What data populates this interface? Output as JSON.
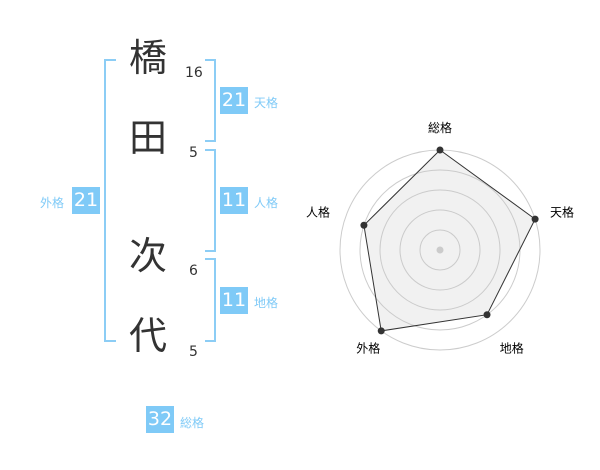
{
  "name": {
    "chars": [
      {
        "char": "橋",
        "strokes": "16"
      },
      {
        "char": "田",
        "strokes": "5"
      },
      {
        "char": "次",
        "strokes": "6"
      },
      {
        "char": "代",
        "strokes": "5"
      }
    ]
  },
  "kaku": {
    "tenkaku": {
      "label": "天格",
      "value": "21"
    },
    "jinkaku": {
      "label": "人格",
      "value": "11"
    },
    "chikaku": {
      "label": "地格",
      "value": "11"
    },
    "gaikaku": {
      "label": "外格",
      "value": "21"
    },
    "soukaku": {
      "label": "総格",
      "value": "32"
    }
  },
  "colors": {
    "accent": "#7fcaf7",
    "bracket": "#8ccdf5"
  },
  "chart_data": {
    "type": "radar",
    "axes": [
      "総格",
      "天格",
      "地格",
      "外格",
      "人格"
    ],
    "values": [
      5,
      5,
      4,
      5,
      4
    ],
    "rmax": 5,
    "rings": 5
  }
}
